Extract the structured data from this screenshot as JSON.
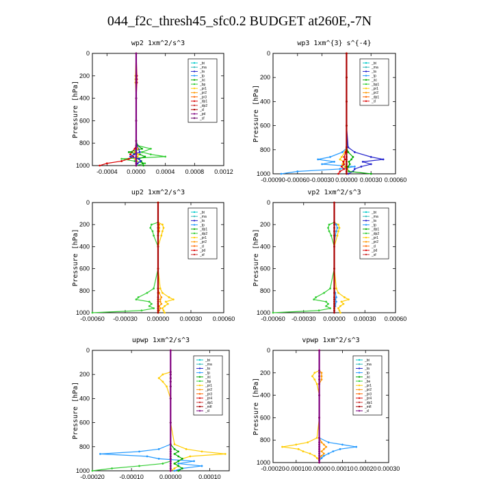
{
  "title": "044_f2c_thresh45_sfc0.2  BUDGET at260E,-7N",
  "chart_data": [
    {
      "type": "line",
      "title": "wp2   1xm^2/s^3",
      "ylabel": "Pressure [hPa]",
      "ylim": [
        1000,
        0
      ],
      "xlim": [
        -0.0006,
        0.0012
      ],
      "xticks": [
        "-0.0004",
        "0.0000",
        "0.0004",
        "0.0008",
        "0.0012"
      ],
      "xtick_values": [
        -0.0004,
        0.0,
        0.0004,
        0.0008,
        0.0012
      ],
      "yticks": [
        "0",
        "200",
        "400",
        "600",
        "800",
        "1000"
      ],
      "pressure": [
        0,
        200,
        230,
        260,
        400,
        600,
        780,
        820,
        850,
        880,
        900,
        920,
        940,
        960,
        980,
        1000
      ],
      "legend": [
        "_bt",
        "_ma",
        "_ta",
        "_tp",
        "_ac",
        "_bp",
        "_pr1",
        "_pr2",
        "_pr3",
        "_dp1",
        "_dp2",
        "_cl",
        "_pd",
        "_sf"
      ],
      "series": [
        {
          "name": "_bp",
          "color": "#32cd32",
          "values": [
            0,
            0,
            0,
            0,
            0,
            0,
            0,
            1e-05,
            0.0002,
            8e-05,
            0.0002,
            0.0004,
            -0.0002,
            -2e-05,
            0.00012,
            0
          ]
        },
        {
          "name": "_dp2",
          "color": "#dd0000",
          "values": [
            0,
            1e-05,
            1e-05,
            1e-05,
            0,
            0,
            0,
            0,
            -2e-05,
            -6e-05,
            -8e-05,
            -4e-05,
            -0.0001,
            -0.0002,
            -0.0004,
            -0.0005
          ]
        },
        {
          "name": "_ac",
          "color": "#00aa00",
          "values": [
            0,
            0,
            0,
            0,
            0,
            0,
            0,
            2e-05,
            8e-05,
            -0.0001,
            5e-05,
            0.00012,
            3e-05,
            7e-05,
            9e-05,
            0.0001
          ]
        },
        {
          "name": "_ta",
          "color": "#2222cc",
          "values": [
            0,
            0,
            0,
            0,
            0,
            0,
            0,
            1e-05,
            3e-05,
            5e-05,
            -3e-05,
            -8e-05,
            4e-05,
            6e-05,
            2e-05,
            0
          ]
        },
        {
          "name": "_pr1",
          "color": "#ffcc00",
          "values": [
            0,
            -1e-05,
            -1e-05,
            -1e-05,
            0,
            0,
            0,
            0,
            2e-05,
            -2e-05,
            3e-05,
            2e-05,
            -2e-05,
            1e-05,
            0,
            0
          ]
        },
        {
          "name": "_pd",
          "color": "#800080",
          "values": [
            0,
            0,
            0,
            0,
            0,
            0,
            0,
            0,
            0,
            0,
            0,
            0,
            0,
            0,
            0,
            0
          ]
        }
      ]
    },
    {
      "type": "line",
      "title": "wp3   1xm^{3} s^{-4}",
      "ylabel": "Pressure [hPa]",
      "ylim": [
        1000,
        0
      ],
      "xlim": [
        -0.0009,
        0.0006
      ],
      "xticks": [
        "-0.00090",
        "-0.00060",
        "-0.00030",
        "0.00000",
        "0.00030",
        "0.00060"
      ],
      "xtick_values": [
        -0.0009,
        -0.0006,
        -0.0003,
        0.0,
        0.0003,
        0.0006
      ],
      "yticks": [
        "0",
        "200",
        "400",
        "600",
        "800",
        "1000"
      ],
      "pressure": [
        0,
        200,
        400,
        600,
        780,
        820,
        860,
        880,
        900,
        920,
        940,
        960,
        980,
        1000
      ],
      "legend": [
        "_bt",
        "_ma",
        "_ta",
        "_tp",
        "_ac",
        "_bp1",
        "_pr1",
        "_pr2",
        "_dp1",
        "_cl"
      ],
      "series": [
        {
          "name": "_tp",
          "color": "#2299ff",
          "values": [
            0,
            0,
            0,
            0,
            1e-05,
            -5e-05,
            -0.0002,
            -0.00035,
            -0.00015,
            -0.0003,
            0.0001,
            -8e-05,
            -0.0006,
            -0.0008
          ]
        },
        {
          "name": "_ta",
          "color": "#2222cc",
          "values": [
            0,
            0,
            0,
            0,
            2e-05,
            0.0001,
            0.0003,
            0.00045,
            0.0002,
            0.0003,
            0.00018,
            0.0001,
            8e-05,
            2e-05
          ]
        },
        {
          "name": "_ac",
          "color": "#00aa00",
          "values": [
            0,
            0,
            0,
            0,
            0,
            2e-05,
            8e-05,
            6e-05,
            3e-05,
            4e-05,
            2e-05,
            1e-05,
            3e-05,
            0.0003
          ]
        },
        {
          "name": "_pr1",
          "color": "#ffcc00",
          "values": [
            0,
            0,
            0,
            0,
            0,
            -2e-05,
            -6e-05,
            -8e-05,
            -3e-05,
            -5e-05,
            -2e-05,
            1e-05,
            0,
            0
          ]
        },
        {
          "name": "_dp1",
          "color": "#dd0000",
          "values": [
            0,
            0,
            0,
            0,
            0,
            -1e-05,
            -3e-05,
            -2e-05,
            -4e-05,
            -3e-05,
            -6e-05,
            -3e-05,
            -8e-05,
            -0.0001
          ]
        },
        {
          "name": "_cl",
          "color": "#aa0000",
          "values": [
            0,
            0,
            0,
            0,
            0,
            0,
            0,
            0,
            0,
            0,
            0,
            0,
            0,
            0
          ]
        }
      ]
    },
    {
      "type": "line",
      "title": "up2   1xm^2/s^3",
      "ylabel": "Pressure [hPa]",
      "ylim": [
        1000,
        0
      ],
      "xlim": [
        -0.0006,
        0.0006
      ],
      "xticks": [
        "-0.00060",
        "-0.00030",
        "0.00000",
        "0.00030",
        "0.00060"
      ],
      "xtick_values": [
        -0.0006,
        -0.0003,
        0.0,
        0.0003,
        0.0006
      ],
      "yticks": [
        "0",
        "200",
        "400",
        "600",
        "800",
        "1000"
      ],
      "pressure": [
        0,
        180,
        200,
        230,
        260,
        300,
        400,
        600,
        780,
        820,
        860,
        880,
        900,
        920,
        940,
        960,
        980,
        1000
      ],
      "legend": [
        "_bt",
        "_ma",
        "_ta",
        "_tp",
        "_dp1",
        "_dp2",
        "_pr1",
        "_pr2",
        "_cl",
        "_pd",
        "_sf"
      ],
      "series": [
        {
          "name": "_dp2",
          "color": "#32cd32",
          "values": [
            0,
            0,
            -6e-05,
            -7e-05,
            -5e-05,
            -4e-05,
            0,
            0,
            -4e-05,
            -0.0001,
            -0.00018,
            -0.0002,
            -8e-05,
            -6e-05,
            -8e-05,
            -4e-05,
            -0.00015,
            -0.0006
          ]
        },
        {
          "name": "_pr2",
          "color": "#ffcc00",
          "values": [
            0,
            0,
            4e-05,
            5e-05,
            4e-05,
            3e-05,
            0,
            0,
            2e-05,
            4e-05,
            0.0001,
            0.00014,
            7e-05,
            9e-05,
            6e-05,
            4e-05,
            5e-05,
            6e-05
          ]
        },
        {
          "name": "_pr1",
          "color": "#ff9900",
          "values": [
            0,
            0,
            1e-05,
            1e-05,
            1e-05,
            0,
            0,
            0,
            0,
            1e-05,
            3e-05,
            2e-05,
            2e-05,
            3e-05,
            1e-05,
            2e-05,
            1e-05,
            0
          ]
        },
        {
          "name": "_pd",
          "color": "#aa0000",
          "values": [
            0,
            0,
            0,
            0,
            0,
            0,
            0,
            0,
            0,
            0,
            0,
            0,
            0,
            0,
            0,
            0,
            0,
            0
          ]
        }
      ]
    },
    {
      "type": "line",
      "title": "vp2   1xm^2/s^3",
      "ylabel": "Pressure [hPa]",
      "ylim": [
        1000,
        0
      ],
      "xlim": [
        -0.0006,
        0.0006
      ],
      "xticks": [
        "-0.00060",
        "-0.00030",
        "0.00000",
        "0.00030",
        "0.00060"
      ],
      "xtick_values": [
        -0.0006,
        -0.0003,
        0.0,
        0.0003,
        0.0006
      ],
      "yticks": [
        "0",
        "200",
        "400",
        "600",
        "800",
        "1000"
      ],
      "pressure": [
        0,
        180,
        200,
        230,
        260,
        300,
        400,
        600,
        780,
        820,
        860,
        880,
        900,
        920,
        940,
        960,
        980,
        1000
      ],
      "legend": [
        "_bt",
        "_ma",
        "_ta",
        "_tp",
        "_dp1",
        "_dp2",
        "_pr1",
        "_pr2",
        "_cl",
        "_pd",
        "_sf"
      ],
      "series": [
        {
          "name": "_dp2",
          "color": "#32cd32",
          "values": [
            0,
            0,
            -5e-05,
            -6e-05,
            -5e-05,
            -3e-05,
            0,
            0,
            -4e-05,
            -0.0001,
            -0.00018,
            -0.0002,
            -8e-05,
            -6e-05,
            -8e-05,
            -4e-05,
            -0.00015,
            -0.0006
          ]
        },
        {
          "name": "_pr2",
          "color": "#ffcc00",
          "values": [
            0,
            0,
            4e-05,
            5e-05,
            4e-05,
            3e-05,
            0,
            0,
            2e-05,
            4e-05,
            0.0001,
            0.00014,
            7e-05,
            9e-05,
            6e-05,
            4e-05,
            5e-05,
            6e-05
          ]
        },
        {
          "name": "_tp",
          "color": "#2299ff",
          "values": [
            0,
            0,
            2e-05,
            3e-05,
            2e-05,
            1e-05,
            0,
            0,
            0,
            1e-05,
            2e-05,
            1e-05,
            2e-05,
            1e-05,
            1e-05,
            0,
            0,
            0
          ]
        },
        {
          "name": "_pd",
          "color": "#aa0000",
          "values": [
            0,
            0,
            0,
            0,
            0,
            0,
            0,
            0,
            0,
            0,
            0,
            0,
            0,
            0,
            0,
            0,
            0,
            0
          ]
        }
      ]
    },
    {
      "type": "line",
      "title": "upwp   1xm^2/s^3",
      "ylabel": "Pressure [hPa]",
      "ylim": [
        1000,
        0
      ],
      "xlim": [
        -0.0002,
        0.00015
      ],
      "xticks": [
        "-0.00020",
        "-0.00010",
        "0.00000",
        "0.00010"
      ],
      "xtick_values": [
        -0.0002,
        -0.0001,
        0.0,
        0.0001
      ],
      "yticks": [
        "0",
        "200",
        "400",
        "600",
        "800",
        "1000"
      ],
      "pressure": [
        0,
        180,
        200,
        230,
        260,
        300,
        400,
        600,
        780,
        820,
        840,
        860,
        880,
        900,
        920,
        940,
        960,
        980,
        1000
      ],
      "legend": [
        "_bt",
        "_ma",
        "_ta",
        "_tp",
        "_ac",
        "_bp",
        "_pr1",
        "_pr2",
        "_pr3",
        "_pr4",
        "_dp1",
        "_mfl",
        "_cl"
      ],
      "series": [
        {
          "name": "_tp",
          "color": "#2299ff",
          "values": [
            0,
            0,
            0,
            0,
            0,
            0,
            0,
            0,
            0,
            -3e-05,
            -8e-05,
            -0.00018,
            -6e-05,
            -3e-05,
            6e-05,
            2e-05,
            8e-05,
            3e-05,
            1e-05
          ]
        },
        {
          "name": "_pr2",
          "color": "#ffcc00",
          "values": [
            0,
            0,
            -2e-05,
            -3e-05,
            -2e-05,
            -1e-05,
            0,
            0,
            1e-05,
            4e-05,
            8e-05,
            0.00014,
            5e-05,
            3e-05,
            2e-05,
            1e-05,
            2e-05,
            1e-05,
            0
          ]
        },
        {
          "name": "_ac",
          "color": "#00aa00",
          "values": [
            0,
            0,
            0,
            0,
            0,
            0,
            0,
            0,
            0,
            1e-05,
            2e-05,
            1e-05,
            2e-05,
            3e-05,
            2e-05,
            1e-05,
            2e-05,
            3e-05,
            2e-05
          ]
        },
        {
          "name": "_bp",
          "color": "#32cd32",
          "values": [
            0,
            0,
            0,
            0,
            0,
            0,
            0,
            0,
            0,
            0,
            0,
            0,
            0,
            0,
            0,
            -2e-05,
            -8e-05,
            -0.00015,
            -0.0002
          ]
        },
        {
          "name": "_dp1",
          "color": "#dd0000",
          "values": [
            0,
            0,
            0,
            0,
            0,
            0,
            0,
            0,
            0,
            0,
            0,
            0,
            0,
            0,
            0,
            0,
            0,
            0,
            0
          ]
        },
        {
          "name": "_cl",
          "color": "#800080",
          "values": [
            0,
            0,
            0,
            0,
            0,
            0,
            0,
            0,
            0,
            0,
            0,
            0,
            0,
            0,
            0,
            0,
            0,
            0,
            0
          ]
        }
      ]
    },
    {
      "type": "line",
      "title": "vpwp   1xm^2/s^3",
      "ylabel": "Pressure [hPa]",
      "ylim": [
        1000,
        0
      ],
      "xlim": [
        -0.0002,
        0.0003
      ],
      "xticks": [
        "-0.00020",
        "-0.00010",
        "0.00000",
        "0.00010",
        "0.00020",
        "0.00030"
      ],
      "xtick_values": [
        -0.0002,
        -0.0001,
        0.0,
        0.0001,
        0.0002,
        0.0003
      ],
      "yticks": [
        "0",
        "200",
        "400",
        "600",
        "800",
        "1000"
      ],
      "pressure": [
        0,
        180,
        200,
        230,
        260,
        300,
        400,
        600,
        780,
        820,
        840,
        860,
        880,
        900,
        920,
        940,
        960,
        980,
        1000
      ],
      "legend": [
        "_bt",
        "_ma",
        "_ta",
        "_tp",
        "_ac",
        "_be",
        "_pr1",
        "_pr2",
        "_pr3",
        "_pr4",
        "_dp1",
        "_mfl",
        "_cl"
      ],
      "series": [
        {
          "name": "_tp",
          "color": "#2299ff",
          "values": [
            0,
            0,
            0,
            0,
            0,
            0,
            0,
            0,
            0,
            4e-05,
            0.0001,
            0.00016,
            9e-05,
            6e-05,
            4e-05,
            2e-05,
            1e-05,
            0,
            0
          ]
        },
        {
          "name": "_pr2",
          "color": "#ffcc00",
          "values": [
            0,
            0,
            -2e-05,
            -3e-05,
            -2e-05,
            -1e-05,
            0,
            0,
            -1e-05,
            -5e-05,
            -0.0001,
            -0.00016,
            -9e-05,
            -7e-05,
            -4e-05,
            -2e-05,
            -1e-05,
            0,
            0
          ]
        },
        {
          "name": "_pr1",
          "color": "#ff9900",
          "values": [
            0,
            0,
            1e-05,
            1e-05,
            1e-05,
            0,
            0,
            0,
            0,
            1e-05,
            2e-05,
            3e-05,
            2e-05,
            1e-05,
            2e-05,
            1e-05,
            0,
            0,
            0
          ]
        },
        {
          "name": "_dp1",
          "color": "#dd0000",
          "values": [
            0,
            0,
            0,
            0,
            0,
            0,
            0,
            0,
            0,
            0,
            0,
            0,
            0,
            0,
            0,
            0,
            0,
            0,
            0
          ]
        },
        {
          "name": "_cl",
          "color": "#800080",
          "values": [
            0,
            0,
            0,
            0,
            0,
            0,
            0,
            0,
            0,
            0,
            0,
            0,
            0,
            0,
            0,
            0,
            0,
            0,
            0
          ]
        }
      ]
    }
  ]
}
